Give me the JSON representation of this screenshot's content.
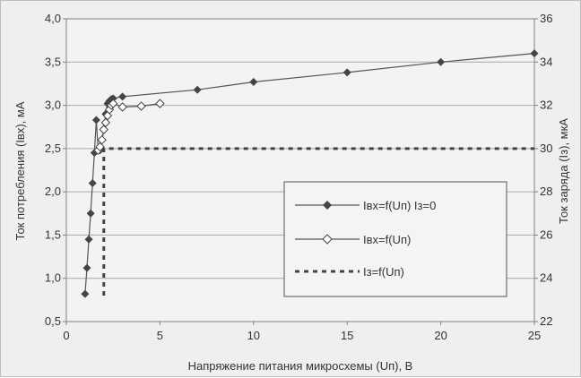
{
  "chart_data": {
    "type": "line",
    "title": "",
    "xlabel": "Напряжение питания микросхемы (Uп), В",
    "ylabel_left": "Ток потребления (Iвх), мА",
    "ylabel_right": "Ток заряда (Iз), мкА",
    "xlim": [
      0,
      25
    ],
    "ylim_left": [
      0.5,
      4.0
    ],
    "ylim_right": [
      22,
      36
    ],
    "x_ticks": [
      "0",
      "5",
      "10",
      "15",
      "20",
      "25"
    ],
    "y_left_ticks": [
      "0,5",
      "1,0",
      "1,5",
      "2,0",
      "2,5",
      "3,0",
      "3,5",
      "4,0"
    ],
    "y_right_ticks": [
      "22",
      "24",
      "26",
      "28",
      "30",
      "32",
      "34",
      "36"
    ],
    "grid": true,
    "legend_position": "center-right",
    "series": [
      {
        "name": "Iвх=f(Uп) Iз=0",
        "axis": "left",
        "marker": "filled-diamond",
        "x": [
          1.0,
          1.1,
          1.2,
          1.3,
          1.4,
          1.5,
          1.6,
          1.7,
          1.8,
          1.9,
          2.0,
          2.1,
          2.2,
          2.3,
          2.4,
          2.5,
          3.0,
          7.0,
          10.0,
          15.0,
          20.0,
          25.0
        ],
        "y": [
          0.82,
          1.12,
          1.45,
          1.75,
          2.1,
          2.45,
          2.83,
          2.48,
          2.48,
          2.6,
          2.72,
          2.9,
          3.02,
          3.05,
          3.07,
          3.08,
          3.1,
          3.18,
          3.27,
          3.38,
          3.5,
          3.6
        ]
      },
      {
        "name": "Iвх=f(Uп)",
        "axis": "left",
        "marker": "hollow-diamond",
        "x": [
          1.7,
          1.8,
          1.9,
          2.0,
          2.1,
          2.2,
          2.3,
          2.4,
          2.5,
          3.0,
          4.0,
          5.0
        ],
        "y": [
          2.48,
          2.52,
          2.6,
          2.72,
          2.8,
          2.88,
          2.95,
          3.0,
          3.02,
          2.98,
          2.99,
          3.02
        ]
      },
      {
        "name": "Iз=f(Uп)",
        "axis": "right",
        "marker": "dashed",
        "x": [
          2.0,
          2.0,
          2.5,
          25.0
        ],
        "y": [
          23.2,
          30.0,
          30.0,
          30.0
        ]
      }
    ]
  },
  "colors": {
    "background": "#efefef",
    "plot_background": "#f3f3f3",
    "grid": "#a8a8a8",
    "axis": "#808080",
    "series_line": "#555555",
    "marker": "#444444",
    "dashed": "#444444"
  }
}
